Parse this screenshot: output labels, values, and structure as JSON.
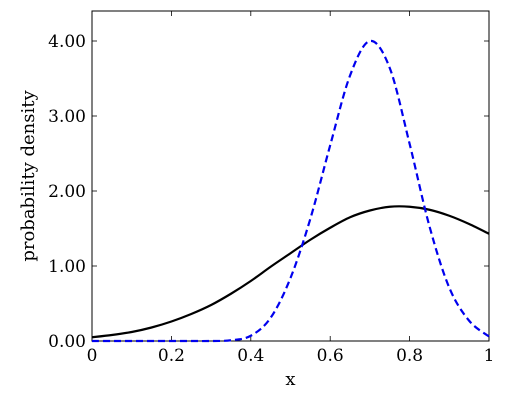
{
  "chart_data": {
    "type": "line",
    "title": "",
    "xlabel": "x",
    "ylabel": "probability density",
    "xlim": [
      0,
      1
    ],
    "ylim": [
      0,
      4.4
    ],
    "grid": false,
    "legend": "none",
    "x_ticks": [
      {
        "value": 0,
        "label": "0"
      },
      {
        "value": 0.2,
        "label": "0.2"
      },
      {
        "value": 0.4,
        "label": "0.4"
      },
      {
        "value": 0.6,
        "label": "0.6"
      },
      {
        "value": 0.8,
        "label": "0.8"
      },
      {
        "value": 1,
        "label": "1"
      }
    ],
    "y_ticks": [
      {
        "value": 0,
        "label": "0.00"
      },
      {
        "value": 1,
        "label": "1.00"
      },
      {
        "value": 2,
        "label": "2.00"
      },
      {
        "value": 3,
        "label": "3.00"
      },
      {
        "value": 4,
        "label": "4.00"
      }
    ],
    "x": [
      0,
      0.05,
      0.1,
      0.15,
      0.2,
      0.25,
      0.3,
      0.35,
      0.4,
      0.45,
      0.5,
      0.55,
      0.6,
      0.65,
      0.7,
      0.75,
      0.8,
      0.85,
      0.9,
      0.95,
      1
    ],
    "series": [
      {
        "color": "#000000",
        "style": "solid",
        "values": [
          0.05,
          0.08,
          0.12,
          0.18,
          0.26,
          0.36,
          0.48,
          0.63,
          0.8,
          0.99,
          1.17,
          1.35,
          1.51,
          1.65,
          1.74,
          1.79,
          1.79,
          1.75,
          1.67,
          1.56,
          1.43
        ]
      },
      {
        "color": "#0000ee",
        "style": "dashed",
        "values": [
          0,
          0,
          0,
          0,
          0,
          0,
          0,
          0.01,
          0.07,
          0.31,
          0.84,
          1.63,
          2.61,
          3.54,
          4.0,
          3.64,
          2.63,
          1.53,
          0.71,
          0.27,
          0.06
        ]
      }
    ]
  }
}
